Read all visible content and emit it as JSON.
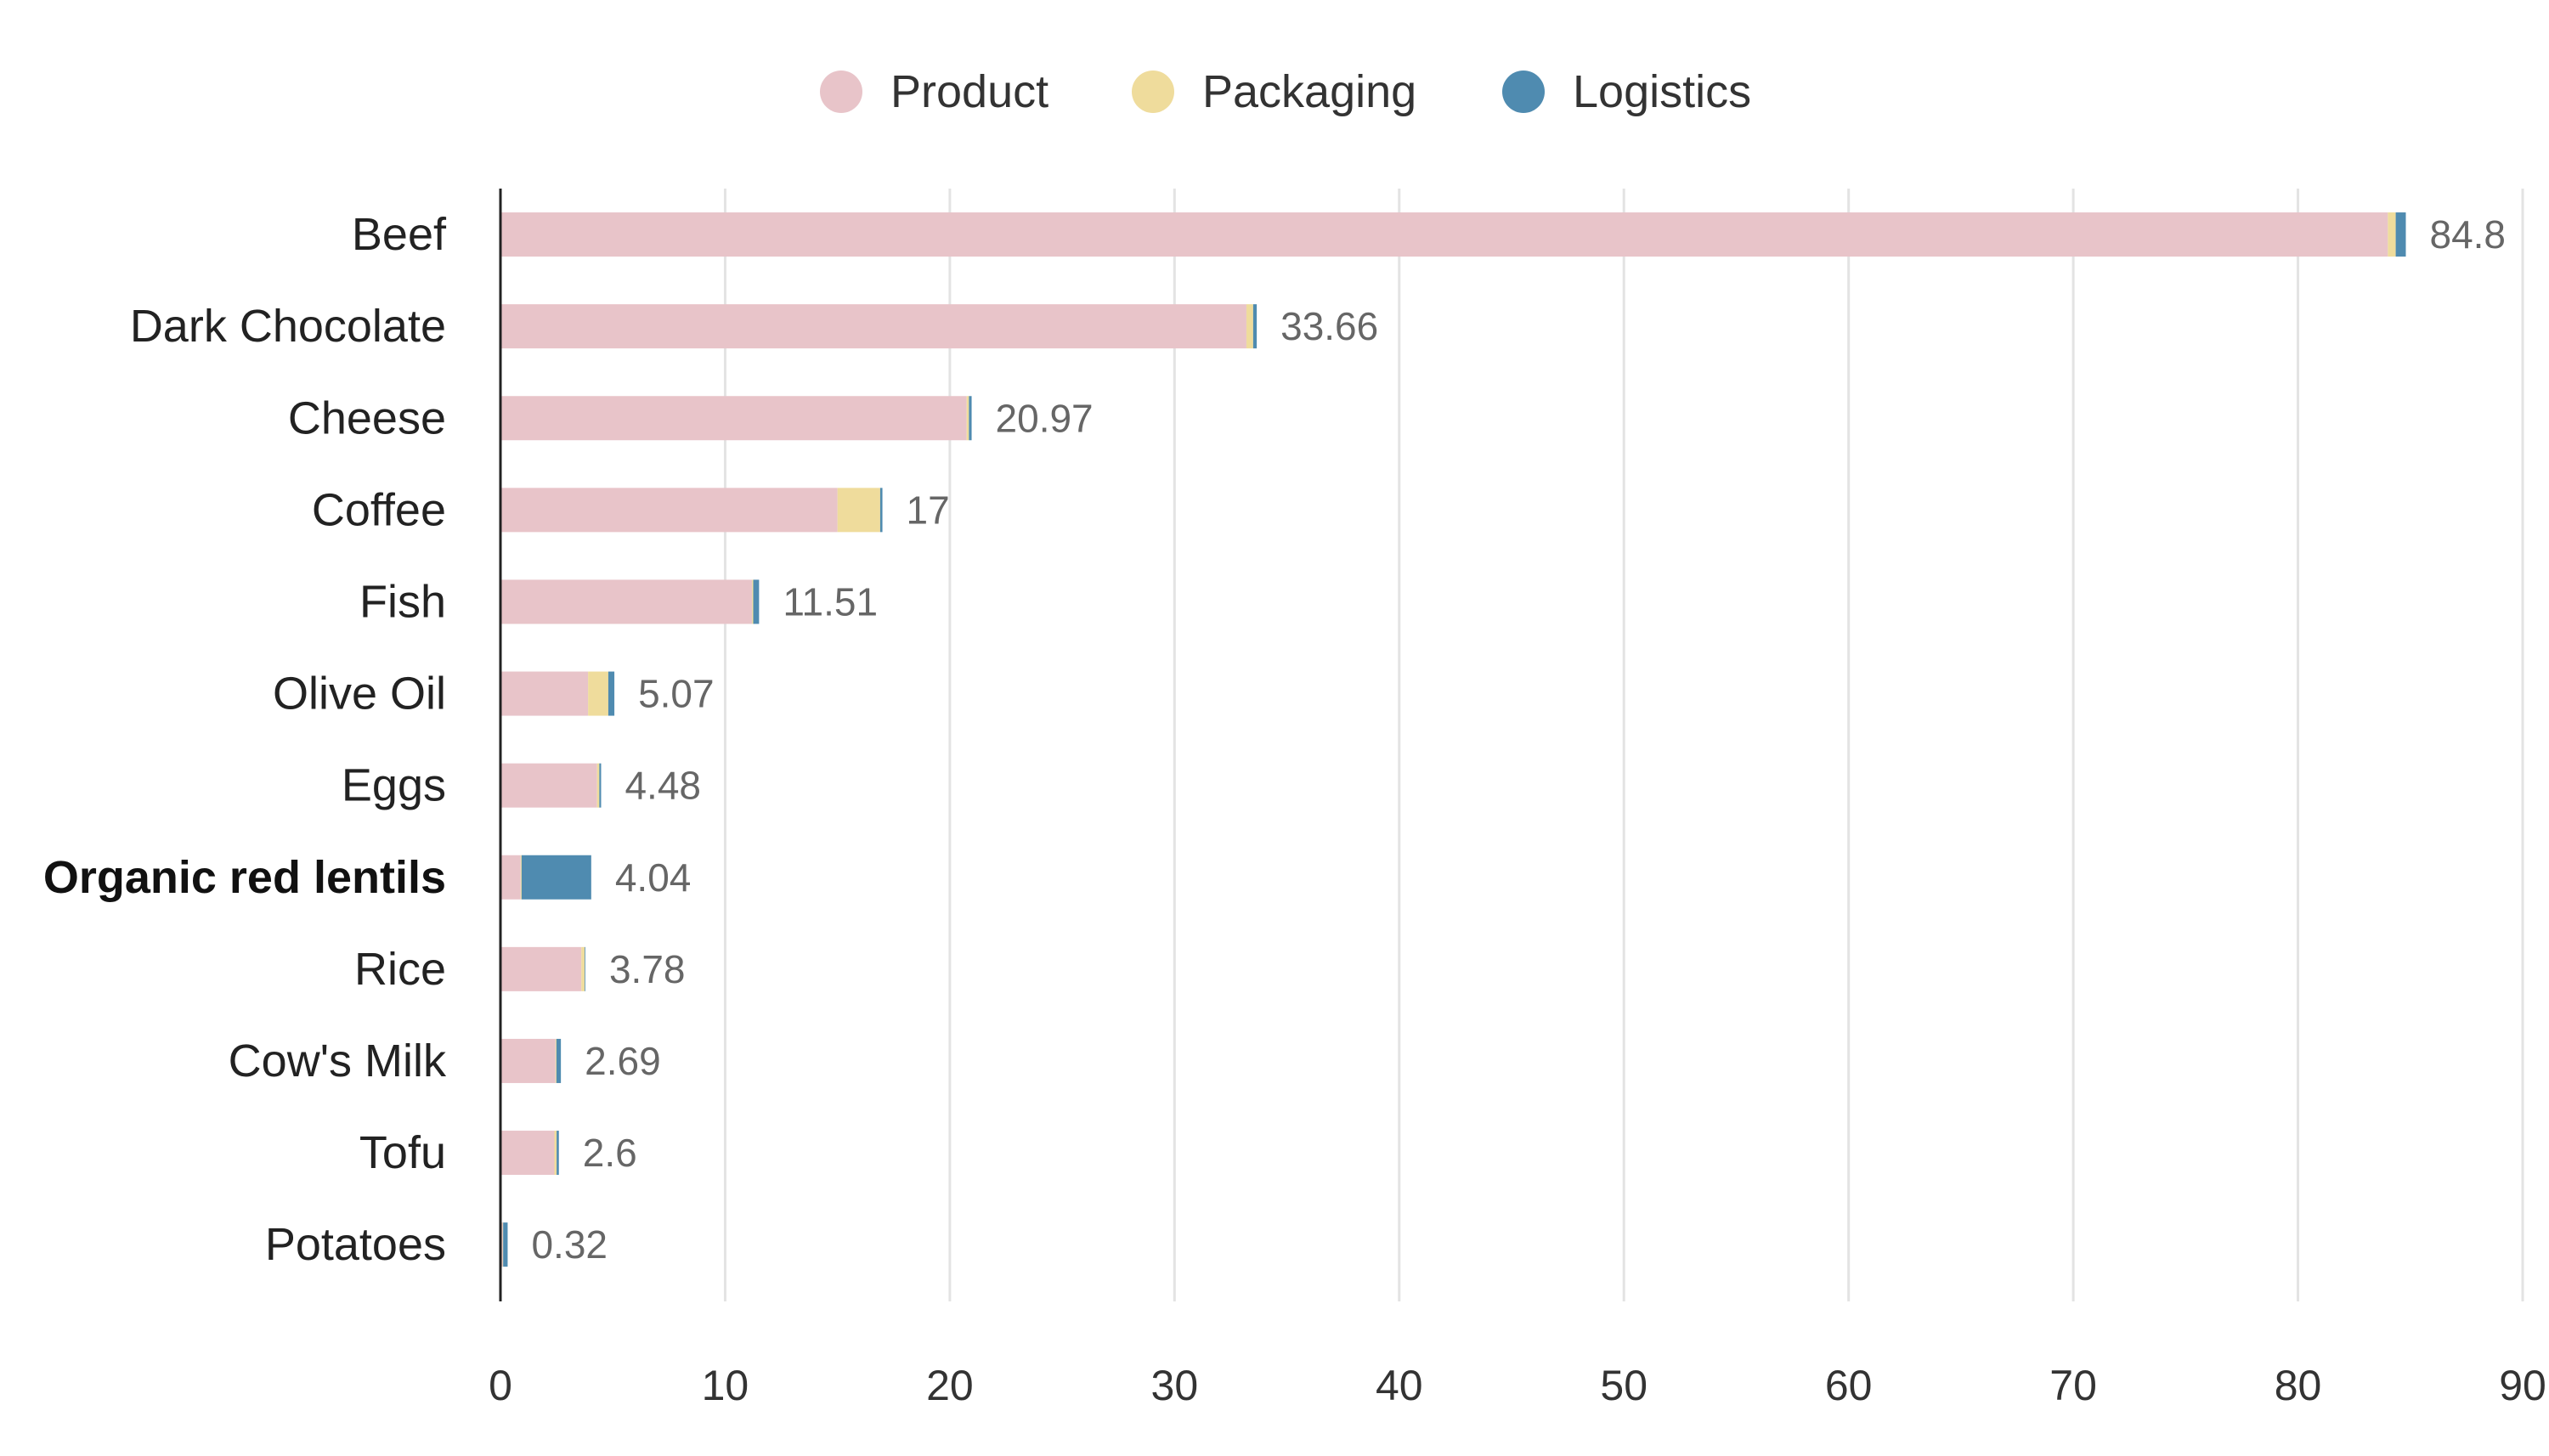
{
  "chart_data": {
    "type": "bar",
    "orientation": "horizontal",
    "stacked": true,
    "title": "",
    "xlabel": "",
    "ylabel": "",
    "xlim": [
      0,
      90
    ],
    "x_ticks": [
      0,
      10,
      20,
      30,
      40,
      50,
      60,
      70,
      80,
      90
    ],
    "grid": "vertical",
    "legend_position": "top-center",
    "categories": [
      "Beef",
      "Dark Chocolate",
      "Cheese",
      "Coffee",
      "Fish",
      "Olive Oil",
      "Eggs",
      "Organic red lentils",
      "Rice",
      "Cow's Milk",
      "Tofu",
      "Potatoes"
    ],
    "highlighted_category": "Organic red lentils",
    "series": [
      {
        "name": "Product",
        "color": "#e8c4c9",
        "values": [
          84.0,
          33.2,
          20.75,
          15.0,
          11.2,
          3.9,
          4.3,
          0.9,
          3.6,
          2.45,
          2.4,
          0.1
        ]
      },
      {
        "name": "Packaging",
        "color": "#efdc9c",
        "values": [
          0.35,
          0.3,
          0.1,
          1.9,
          0.05,
          0.9,
          0.1,
          0.04,
          0.15,
          0.04,
          0.1,
          0.02
        ]
      },
      {
        "name": "Logistics",
        "color": "#4f8bb0",
        "values": [
          0.45,
          0.16,
          0.12,
          0.1,
          0.26,
          0.27,
          0.08,
          3.1,
          0.03,
          0.2,
          0.1,
          0.2
        ]
      }
    ],
    "totals": [
      "84.8",
      "33.66",
      "20.97",
      "17",
      "11.51",
      "5.07",
      "4.48",
      "4.04",
      "3.78",
      "2.69",
      "2.6",
      "0.32"
    ]
  }
}
